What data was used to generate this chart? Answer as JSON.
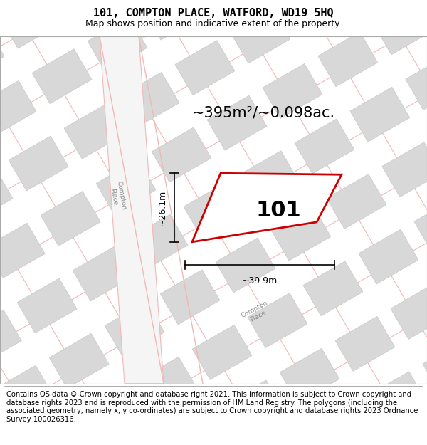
{
  "title": "101, COMPTON PLACE, WATFORD, WD19 5HQ",
  "subtitle": "Map shows position and indicative extent of the property.",
  "area_text": "~395m²/~0.098ac.",
  "property_number": "101",
  "dim_width": "~39.9m",
  "dim_height": "~26.1m",
  "footer": "Contains OS data © Crown copyright and database right 2021. This information is subject to Crown copyright and database rights 2023 and is reproduced with the permission of HM Land Registry. The polygons (including the associated geometry, namely x, y co-ordinates) are subject to Crown copyright and database rights 2023 Ordnance Survey 100026316.",
  "map_bg": "#f7f7f7",
  "road_line_color": "#f0b8b8",
  "block_fill": "#d8d8d8",
  "block_stroke": "#c8c8c8",
  "highlight_stroke": "#cc0000",
  "highlight_fill": "#ffffff",
  "road_label_color": "#888888",
  "title_fontsize": 11,
  "subtitle_fontsize": 9,
  "area_fontsize": 15,
  "number_fontsize": 22,
  "dim_fontsize": 9,
  "footer_fontsize": 7.2
}
